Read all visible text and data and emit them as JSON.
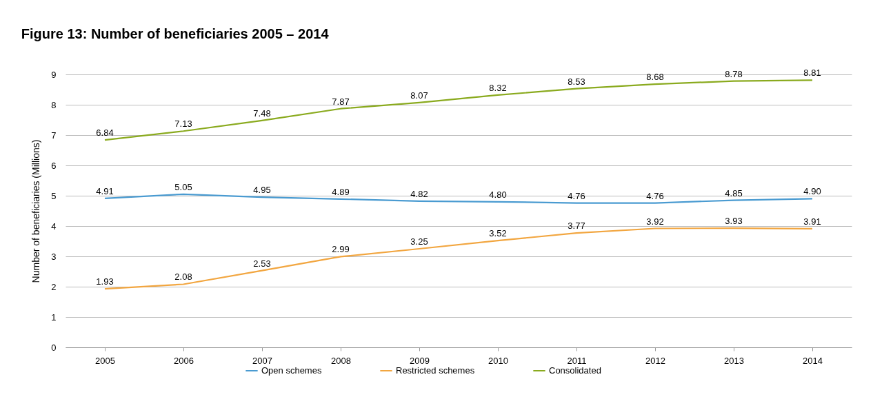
{
  "chart_data": {
    "type": "line",
    "title": "Figure 13: Number of beneficiaries 2005 – 2014",
    "ylabel": "Number of beneficiaries (Millions)",
    "categories": [
      "2005",
      "2006",
      "2007",
      "2008",
      "2009",
      "2010",
      "2011",
      "2012",
      "2013",
      "2014"
    ],
    "series": [
      {
        "name": "Open schemes",
        "color": "#4a9bd1",
        "values": [
          4.91,
          5.05,
          4.95,
          4.89,
          4.82,
          4.8,
          4.76,
          4.76,
          4.85,
          4.9
        ],
        "value_labels": [
          "4.91",
          "5.05",
          "4.95",
          "4.89",
          "4.82",
          "4.80",
          "4.76",
          "4.76",
          "4.85",
          "4.90"
        ]
      },
      {
        "name": "Restricted schemes",
        "color": "#f2a640",
        "values": [
          1.93,
          2.08,
          2.53,
          2.99,
          3.25,
          3.52,
          3.77,
          3.92,
          3.93,
          3.91
        ],
        "value_labels": [
          "1.93",
          "2.08",
          "2.53",
          "2.99",
          "3.25",
          "3.52",
          "3.77",
          "3.92",
          "3.93",
          "3.91"
        ]
      },
      {
        "name": "Consolidated",
        "color": "#8aaa1e",
        "values": [
          6.84,
          7.13,
          7.48,
          7.87,
          8.07,
          8.32,
          8.53,
          8.68,
          8.78,
          8.81
        ],
        "value_labels": [
          "6.84",
          "7.13",
          "7.48",
          "7.87",
          "8.07",
          "8.32",
          "8.53",
          "8.68",
          "8.78",
          "8.81"
        ]
      }
    ],
    "ylim": [
      0,
      9
    ],
    "yticks": [
      0,
      1,
      2,
      3,
      4,
      5,
      6,
      7,
      8,
      9
    ],
    "grid": "y",
    "legend": "bottom"
  }
}
